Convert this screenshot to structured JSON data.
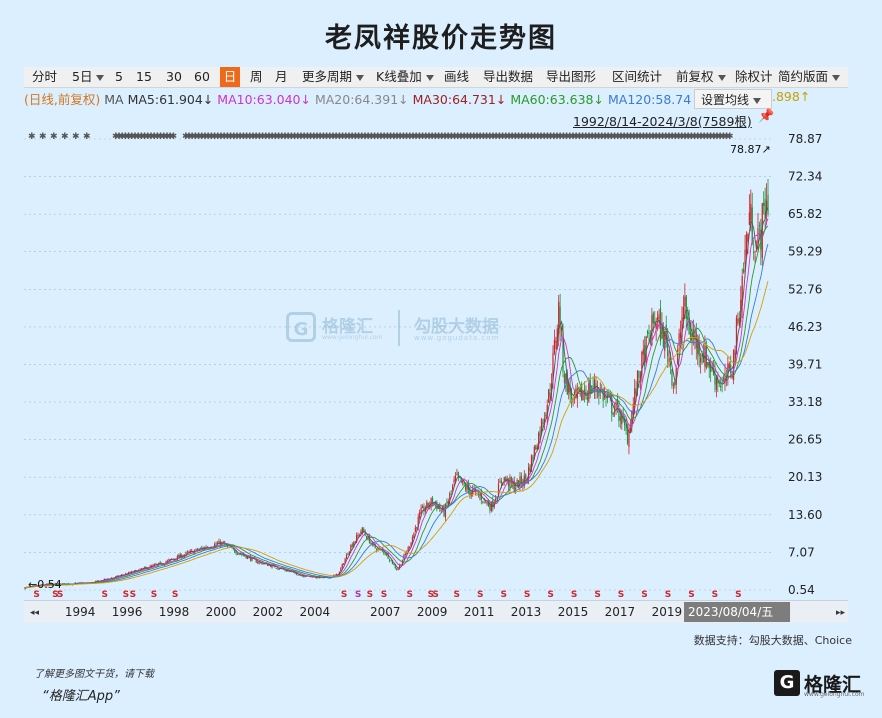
{
  "title": "老凤祥股价走势图",
  "toolbar": {
    "items": [
      "分时",
      "5日",
      "5",
      "15",
      "30",
      "60",
      "日",
      "周",
      "月",
      "更多周期",
      "K线叠加",
      "画线",
      "导出数据",
      "导出图形",
      "区间统计",
      "前复权",
      "除权计",
      "简约版面"
    ],
    "active": "日"
  },
  "ma_legend": {
    "prefix": "(日线,前复权)",
    "ma": "MA",
    "ma5": "MA5:61.904↓",
    "ma10": "MA10:63.040↓",
    "ma20": "MA20:64.391↓",
    "ma30": "MA30:64.731↓",
    "ma60": "MA60:63.638↓",
    "ma120": "MA120:58.74",
    "tail": ".898↑",
    "setting": "设置均线"
  },
  "range_label": "1992/8/14-2024/3/8(7589根)",
  "chart_data": {
    "type": "candlestick",
    "title": "老凤祥股价走势图",
    "y_ticks": [
      78.87,
      72.34,
      65.82,
      59.29,
      52.76,
      46.23,
      39.71,
      33.18,
      26.65,
      20.13,
      13.6,
      7.07,
      0.54
    ],
    "ylim": [
      0.54,
      78.87
    ],
    "x_ticks": [
      "1994",
      "1996",
      "1998",
      "2000",
      "2002",
      "2004",
      "2007",
      "2009",
      "2011",
      "2013",
      "2015",
      "2017",
      "2019"
    ],
    "cursor_date": "2023/08/04/五",
    "max_label": "78.87",
    "min_label": "0.54",
    "approx_close": [
      [
        1992.6,
        0.9
      ],
      [
        1993.5,
        1.5
      ],
      [
        1994.5,
        1.6
      ],
      [
        1995.5,
        1.8
      ],
      [
        1996.5,
        2.8
      ],
      [
        1997.5,
        4.0
      ],
      [
        1998.5,
        5.2
      ],
      [
        1999.5,
        6.8
      ],
      [
        2000.5,
        8.2
      ],
      [
        2001.0,
        8.7
      ],
      [
        2001.5,
        7.5
      ],
      [
        2002.5,
        5.5
      ],
      [
        2003.5,
        4.3
      ],
      [
        2004.5,
        3.0
      ],
      [
        2005.5,
        2.6
      ],
      [
        2006.0,
        3.3
      ],
      [
        2006.5,
        8.0
      ],
      [
        2007.0,
        11.0
      ],
      [
        2007.5,
        8.0
      ],
      [
        2008.0,
        7.0
      ],
      [
        2008.5,
        4.0
      ],
      [
        2009.0,
        8.0
      ],
      [
        2009.5,
        14.0
      ],
      [
        2010.0,
        16.0
      ],
      [
        2010.5,
        14.0
      ],
      [
        2011.0,
        20.0
      ],
      [
        2011.5,
        18.0
      ],
      [
        2012.0,
        17.0
      ],
      [
        2012.5,
        15.0
      ],
      [
        2013.0,
        20.0
      ],
      [
        2013.5,
        18.5
      ],
      [
        2014.0,
        20.0
      ],
      [
        2014.5,
        27.0
      ],
      [
        2015.0,
        35.0
      ],
      [
        2015.4,
        50.0
      ],
      [
        2015.6,
        38.0
      ],
      [
        2016.0,
        33.0
      ],
      [
        2016.5,
        35.0
      ],
      [
        2017.0,
        36.0
      ],
      [
        2017.5,
        33.0
      ],
      [
        2018.0,
        31.0
      ],
      [
        2018.3,
        27.0
      ],
      [
        2018.7,
        36.0
      ],
      [
        2019.0,
        41.0
      ],
      [
        2019.5,
        48.0
      ],
      [
        2020.0,
        43.0
      ],
      [
        2020.3,
        36.0
      ],
      [
        2020.7,
        50.0
      ],
      [
        2021.0,
        45.0
      ],
      [
        2021.5,
        42.0
      ],
      [
        2022.0,
        38.0
      ],
      [
        2022.4,
        36.0
      ],
      [
        2022.8,
        40.0
      ],
      [
        2023.0,
        47.0
      ],
      [
        2023.3,
        58.0
      ],
      [
        2023.5,
        66.0
      ],
      [
        2023.8,
        60.0
      ],
      [
        2024.0,
        63.0
      ],
      [
        2024.2,
        68.0
      ]
    ]
  },
  "source_text": "数据支持：勾股大数据、Choice",
  "watermark": {
    "g": "G",
    "name": "格隆汇",
    "name_sub": "www.gelonghui.com",
    "data": "勾股大数据",
    "data_sub": "www.gogudata.com"
  },
  "footer": {
    "note": "了解更多图文干货，请下载",
    "app": "“格隆汇App”",
    "logo_g": "G",
    "logo_text": "格隆汇",
    "logo_sub": "www.gelonghui.com"
  }
}
